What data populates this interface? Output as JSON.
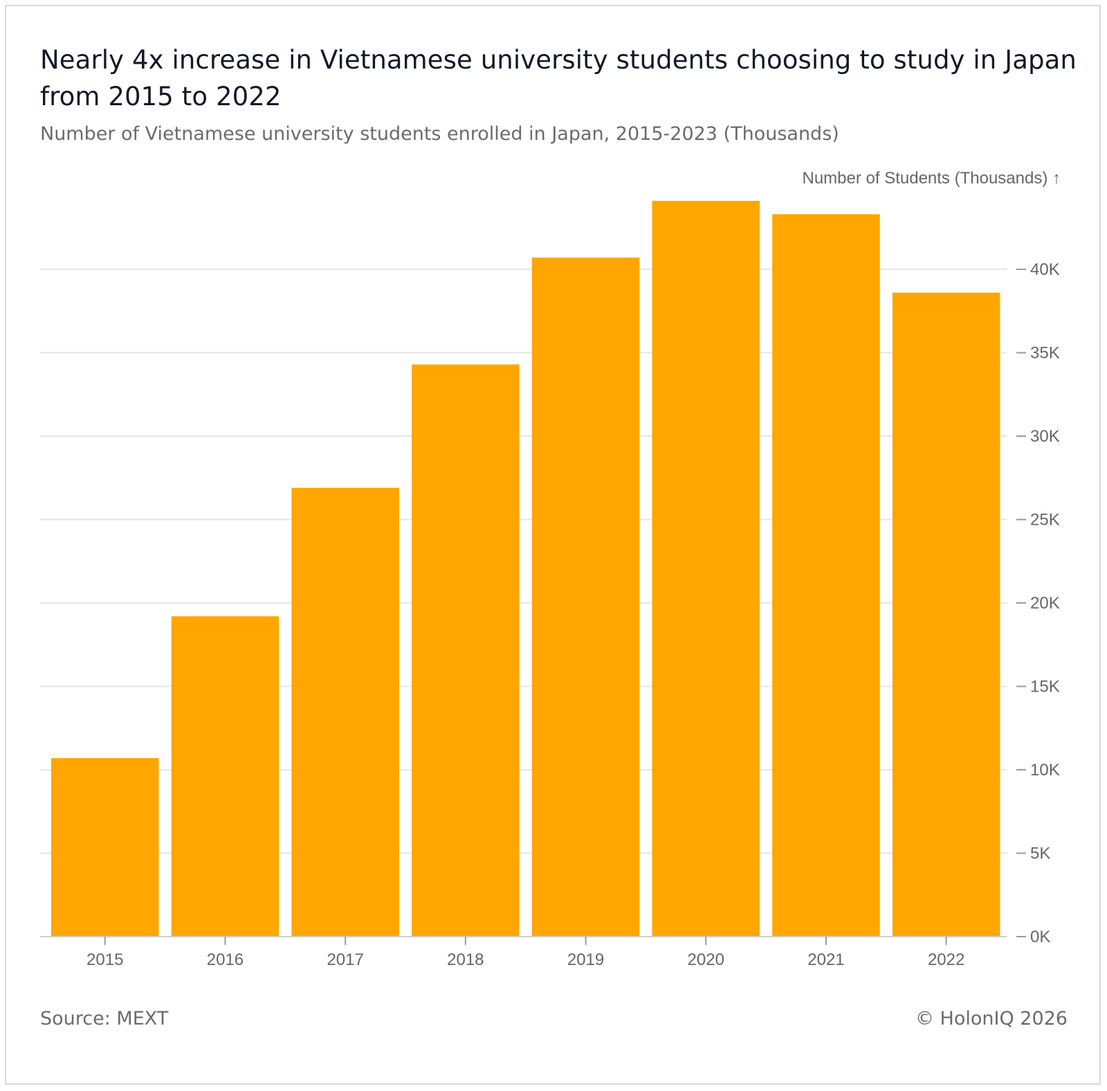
{
  "header": {
    "title": "Nearly 4x increase in Vietnamese university students choosing to study in Japan from 2015 to 2022",
    "subtitle": "Number of Vietnamese university students enrolled in Japan, 2015-2023 (Thousands)"
  },
  "footer": {
    "source": "Source: MEXT",
    "credit": "© HolonIQ 2026"
  },
  "chart_data": {
    "type": "bar",
    "title": "Nearly 4x increase in Vietnamese university students choosing to study in Japan from 2015 to 2022",
    "subtitle": "Number of Vietnamese university students enrolled in Japan, 2015-2023 (Thousands)",
    "ylabel": "Number of Students (Thousands) ↑",
    "xlabel": "",
    "categories": [
      "2015",
      "2016",
      "2017",
      "2018",
      "2019",
      "2020",
      "2021",
      "2022"
    ],
    "values": [
      10.7,
      19.2,
      26.9,
      34.3,
      40.7,
      44.1,
      43.3,
      38.6
    ],
    "ylim": [
      0,
      44.1
    ],
    "yticks": [
      0,
      5,
      10,
      15,
      20,
      25,
      30,
      35,
      40
    ],
    "ytick_labels": [
      "0K",
      "5K",
      "10K",
      "15K",
      "20K",
      "25K",
      "30K",
      "35K",
      "40K"
    ],
    "y_axis_side": "right",
    "grid": true,
    "bar_color": "#ffa600"
  }
}
